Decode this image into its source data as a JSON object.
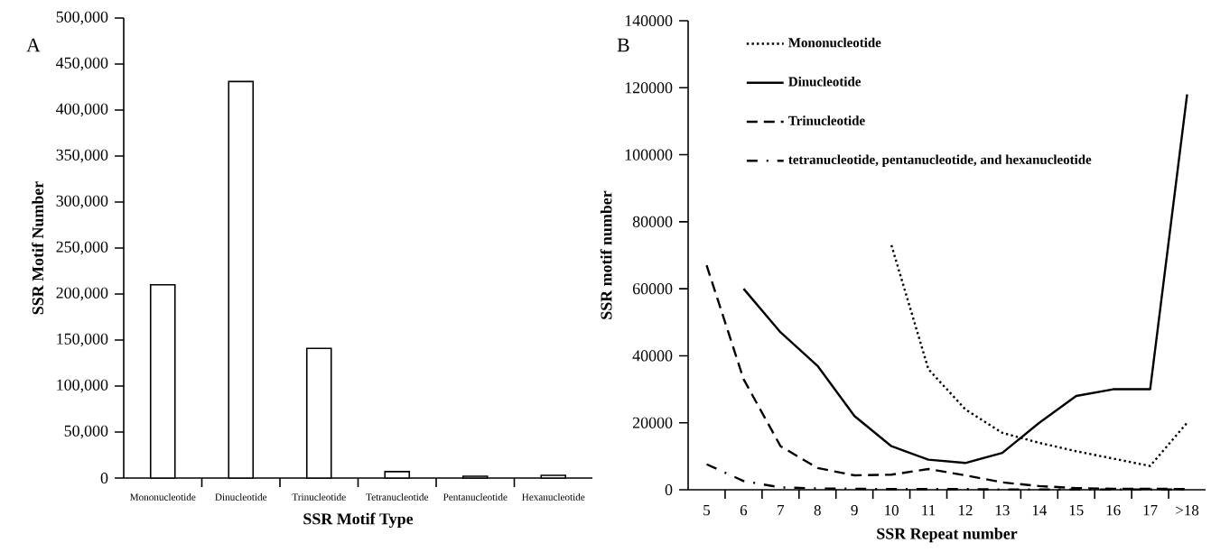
{
  "chart_data": [
    {
      "type": "bar",
      "xlabel": "SSR Motif Type",
      "ylabel": "SSR Motif Number",
      "annotations": [
        "A"
      ],
      "categories": [
        "Mononucleotide",
        "Dinucleotide",
        "Trinucleotide",
        "Tetranucleotide",
        "Pentanucleotide",
        "Hexanucleotide"
      ],
      "values": [
        210000,
        431000,
        141000,
        7000,
        2000,
        3000
      ],
      "color": "#ffffff",
      "ylim": [
        0,
        500000
      ],
      "yticks": [
        0,
        {
          "value": 50000,
          "label": "50,000"
        },
        {
          "value": 100000,
          "label": "100,000"
        },
        {
          "value": 150000,
          "label": "150,000"
        },
        {
          "value": 200000,
          "label": "200,000"
        },
        {
          "value": 250000,
          "label": "250,000"
        },
        {
          "value": 300000,
          "label": "300,000"
        },
        {
          "value": 350000,
          "label": "350,000"
        },
        {
          "value": 400000,
          "label": "400,000"
        },
        {
          "value": 450000,
          "label": "450,000"
        },
        {
          "value": 500000,
          "label": "500,000"
        }
      ]
    },
    {
      "type": "line",
      "xlabel": "SSR Repeat number",
      "ylabel": "SSR motif number",
      "annotations": [
        "B"
      ],
      "categories": [
        "5",
        "6",
        "7",
        "8",
        "9",
        "10",
        "11",
        "12",
        "13",
        "14",
        "15",
        "16",
        "17",
        ">18"
      ],
      "series": [
        {
          "name": "Mononucleotide",
          "color": "#000000",
          "line_style": "dotted",
          "values": [
            null,
            null,
            null,
            null,
            null,
            73000,
            36000,
            24000,
            17000,
            14000,
            11500,
            9300,
            7100,
            20000
          ]
        },
        {
          "name": "Dinucleotide",
          "color": "#000000",
          "line_style": "solid",
          "values": [
            null,
            60000,
            47000,
            37000,
            22000,
            13000,
            9000,
            8000,
            11000,
            20000,
            28000,
            30000,
            30000,
            118000
          ]
        },
        {
          "name": "Trinucleotide",
          "color": "#000000",
          "line_style": "dashed",
          "values": [
            67000,
            33000,
            13000,
            6500,
            4300,
            4500,
            6200,
            4300,
            2200,
            1100,
            500,
            300,
            300,
            200
          ]
        },
        {
          "name": "tetranucleotide, pentanucleotide, and hexanucleotide",
          "color": "#000000",
          "line_style": "dashdot",
          "values": [
            7600,
            2600,
            700,
            400,
            300,
            200,
            200,
            200,
            100,
            100,
            100,
            100,
            100,
            100
          ]
        }
      ],
      "ylim": [
        0,
        140000
      ],
      "yticks": [
        0,
        20000,
        40000,
        60000,
        80000,
        100000,
        120000,
        140000
      ],
      "legend": "top left"
    }
  ]
}
